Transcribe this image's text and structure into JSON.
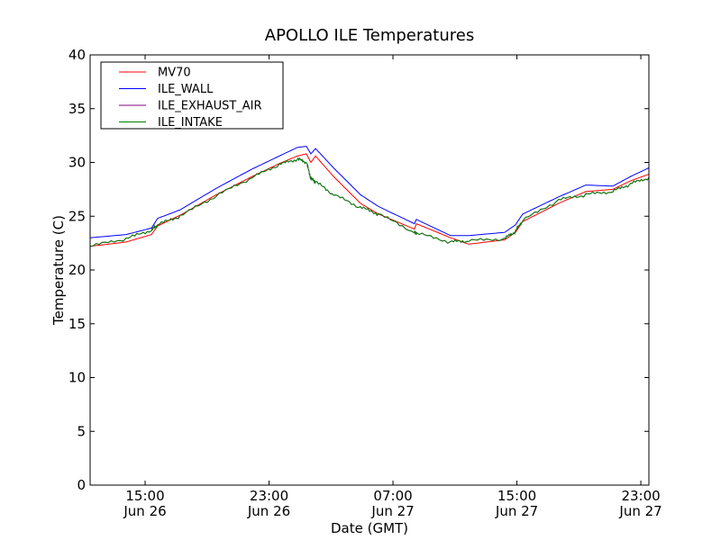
{
  "chart_data": {
    "type": "line",
    "title": "APOLLO ILE Temperatures",
    "xlabel": "Date (GMT)",
    "ylabel": "Temperature (C)",
    "x_unit": "hours since Jun 26 00:00 GMT",
    "xlim": [
      11.45,
      47.52
    ],
    "ylim": [
      0,
      40
    ],
    "grid": false,
    "legend_placement": "top-left",
    "yticks": [
      0,
      5,
      10,
      15,
      20,
      25,
      30,
      35,
      40
    ],
    "xticks": [
      {
        "value": 15,
        "time": "15:00",
        "date": "Jun 26"
      },
      {
        "value": 23,
        "time": "23:00",
        "date": "Jun 26"
      },
      {
        "value": 31,
        "time": "07:00",
        "date": "Jun 27"
      },
      {
        "value": 39,
        "time": "15:00",
        "date": "Jun 27"
      },
      {
        "value": 47,
        "time": "23:00",
        "date": "Jun 27"
      }
    ],
    "x": [
      11.45,
      13.78,
      15.41,
      15.81,
      17.27,
      19.6,
      21.92,
      23.67,
      24.83,
      25.41,
      25.7,
      26.0,
      27.16,
      28.9,
      30.07,
      32.39,
      32.51,
      34.72,
      35.88,
      38.21,
      38.91,
      39.37,
      41.7,
      43.45,
      45.19,
      46.35,
      47.52
    ],
    "series": [
      {
        "name": "MV70",
        "color": "#ff0000",
        "values": [
          22.2,
          22.6,
          23.3,
          24.1,
          25.1,
          27.0,
          28.7,
          29.9,
          30.6,
          30.8,
          30.0,
          30.6,
          28.7,
          26.2,
          25.2,
          23.8,
          24.3,
          23.0,
          22.4,
          22.8,
          23.5,
          24.5,
          26.2,
          27.3,
          27.5,
          28.3,
          28.9
        ]
      },
      {
        "name": "ILE_WALL",
        "color": "#0000ff",
        "values": [
          23.0,
          23.3,
          23.9,
          24.8,
          25.6,
          27.6,
          29.4,
          30.6,
          31.4,
          31.5,
          30.8,
          31.3,
          29.5,
          27.0,
          25.9,
          24.3,
          24.7,
          23.2,
          23.2,
          23.5,
          24.2,
          25.2,
          26.8,
          27.9,
          27.8,
          28.7,
          29.5
        ]
      },
      {
        "name": "ILE_EXHAUST_AIR",
        "color": "#800080",
        "values": [
          22.2,
          22.9,
          23.7,
          24.2,
          25.0,
          26.9,
          28.6,
          29.8,
          30.3,
          30.0,
          28.5,
          28.2,
          27.0,
          25.8,
          25.2,
          23.5,
          23.4,
          22.6,
          22.7,
          22.9,
          23.6,
          24.6,
          26.5,
          27.0,
          27.3,
          28.0,
          28.6
        ]
      },
      {
        "name": "ILE_INTAKE",
        "color": "#008000",
        "values": [
          22.2,
          22.9,
          23.7,
          24.2,
          25.0,
          26.9,
          28.6,
          29.8,
          30.3,
          30.0,
          28.5,
          28.2,
          27.0,
          25.8,
          25.2,
          23.5,
          23.4,
          22.6,
          22.7,
          22.9,
          23.6,
          24.6,
          26.5,
          27.0,
          27.3,
          28.0,
          28.6
        ]
      }
    ]
  }
}
